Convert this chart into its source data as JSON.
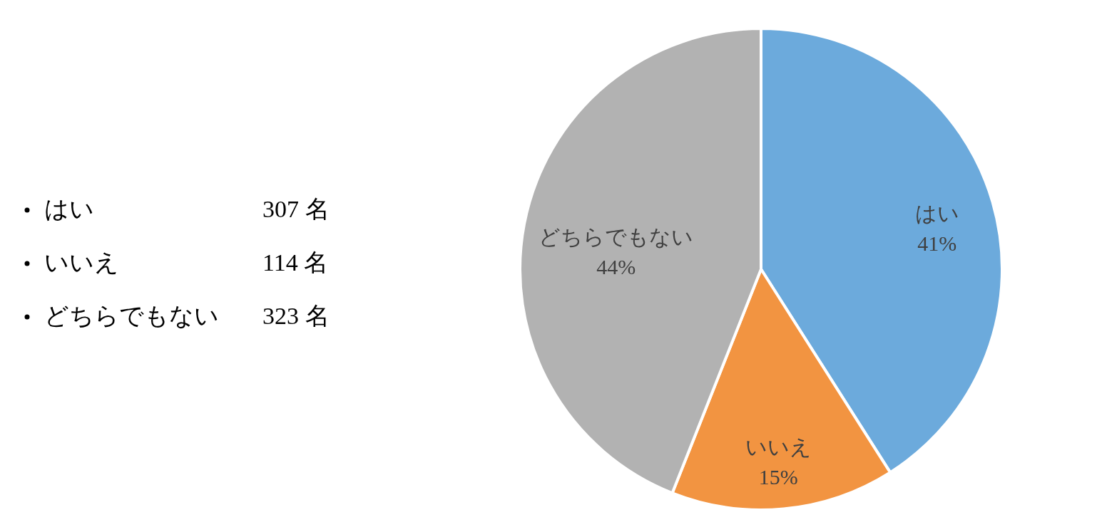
{
  "chart_data": {
    "type": "pie",
    "categories": [
      "はい",
      "いいえ",
      "どちらでもない"
    ],
    "values": [
      41,
      15,
      44
    ],
    "colors": [
      "#6caadc",
      "#f29441",
      "#b2b2b2"
    ],
    "value_labels": [
      "41%",
      "15%",
      "44%"
    ],
    "annotations": [
      "307 名",
      "114 名",
      "323 名"
    ],
    "legend": false
  }
}
